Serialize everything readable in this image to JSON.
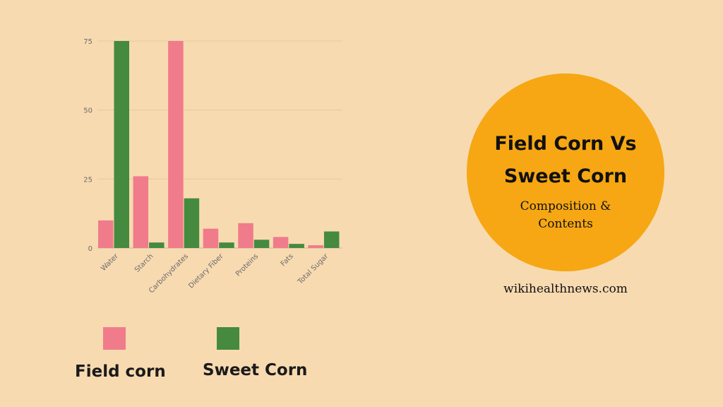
{
  "chart_data": {
    "type": "bar",
    "categories": [
      "Water",
      "Starch",
      "Carbohydrates",
      "Dietary Fiber",
      "Proteins",
      "Fats",
      "Total Sugar"
    ],
    "series": [
      {
        "name": "Field corn",
        "color": "#f07b8b",
        "values": [
          10,
          26,
          75,
          7,
          9,
          4,
          1
        ]
      },
      {
        "name": "Sweet Corn",
        "color": "#458a3f",
        "values": [
          75,
          2,
          18,
          2,
          3,
          1.5,
          6
        ]
      }
    ],
    "yticks": [
      0,
      25,
      50,
      75
    ],
    "ylim": [
      0,
      75
    ],
    "grid": true,
    "legend_position": "bottom"
  },
  "legend": {
    "field_label": "Field corn",
    "sweet_label": "Sweet Corn"
  },
  "title": {
    "line1": "Field Corn Vs",
    "line2": "Sweet Corn",
    "subtitle1": "Composition &",
    "subtitle2": "Contents",
    "circle_color": "#f6a713"
  },
  "website": "wikihealthnews.com"
}
